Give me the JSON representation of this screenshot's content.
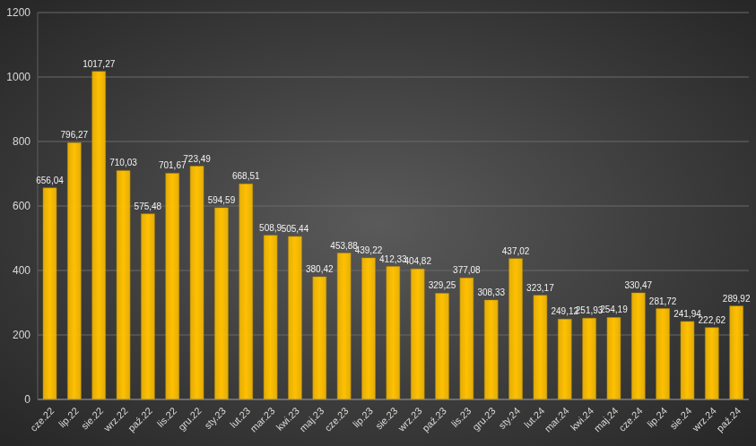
{
  "chart_data": {
    "type": "bar",
    "categories": [
      "cze.22",
      "lip.22",
      "sie.22",
      "wrz.22",
      "paź.22",
      "lis.22",
      "gru.22",
      "sty.23",
      "lut.23",
      "mar.23",
      "kwi.23",
      "maj.23",
      "cze.23",
      "lip.23",
      "sie.23",
      "wrz.23",
      "paź.23",
      "lis.23",
      "gru.23",
      "sty.24",
      "lut.24",
      "mar.24",
      "kwi.24",
      "maj.24",
      "cze.24",
      "lip.24",
      "sie.24",
      "wrz.24",
      "paź.24"
    ],
    "values": [
      656.04,
      796.27,
      1017.27,
      710.03,
      575.48,
      701.67,
      723.49,
      594.59,
      668.51,
      508.9,
      505.44,
      380.42,
      453.88,
      439.22,
      412.33,
      404.82,
      329.25,
      377.08,
      308.33,
      437.02,
      323.17,
      249.12,
      251.93,
      254.19,
      330.47,
      281.72,
      241.94,
      222.62,
      289.92
    ],
    "value_labels": [
      "656,04",
      "796,27",
      "1017,27",
      "710,03",
      "575,48",
      "701,67",
      "723,49",
      "594,59",
      "668,51",
      "508,9",
      "505,44",
      "380,42",
      "453,88",
      "439,22",
      "412,33",
      "404,82",
      "329,25",
      "377,08",
      "308,33",
      "437,02",
      "323,17",
      "249,12",
      "251,93",
      "254,19",
      "330,47",
      "281,72",
      "241,94",
      "222,62",
      "289,92"
    ],
    "color": "#ffc000",
    "ylim": [
      0,
      1200
    ],
    "yticks": [
      0,
      200,
      400,
      600,
      800,
      1000,
      1200
    ],
    "grid": true,
    "data_labels": true
  }
}
